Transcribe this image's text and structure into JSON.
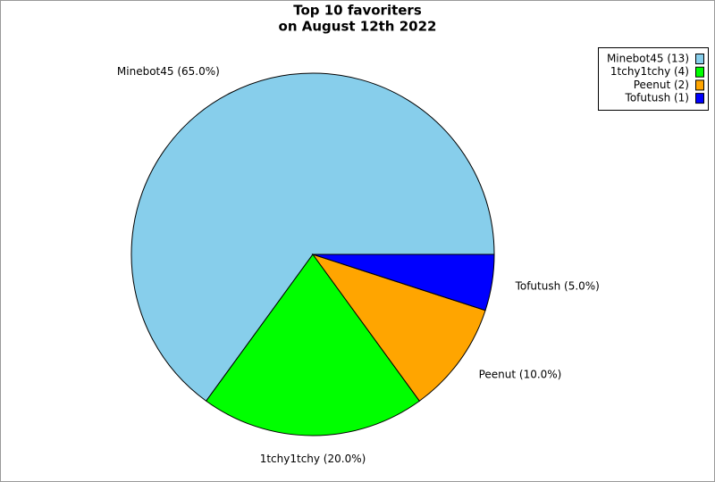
{
  "chart_data": {
    "type": "pie",
    "title": [
      "Top 10 favoriters",
      "on August 12th 2022"
    ],
    "categories": [
      "Minebot45 (13)",
      "1tchy1tchy (4)",
      "Peenut (2)",
      "Tofutush (1)"
    ],
    "values": [
      65.0,
      20.0,
      10.0,
      5.0
    ],
    "value_labels": [
      "Minebot45 (65.0%)",
      "1tchy1tchy (20.0%)",
      "Peenut (10.0%)",
      "Tofutush (5.0%)"
    ],
    "colors": [
      "#87ceeb",
      "#00ff00",
      "#ffa500",
      "#0000ff"
    ],
    "legend": "upper right"
  }
}
